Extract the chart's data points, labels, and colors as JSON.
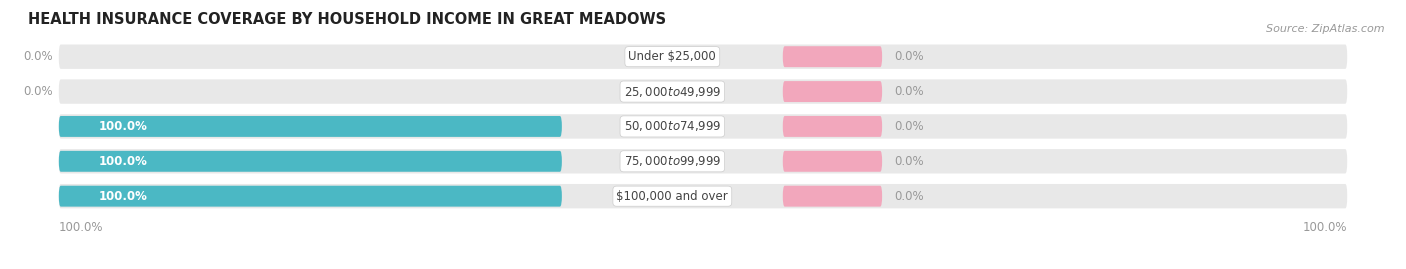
{
  "title": "HEALTH INSURANCE COVERAGE BY HOUSEHOLD INCOME IN GREAT MEADOWS",
  "source": "Source: ZipAtlas.com",
  "categories": [
    "Under $25,000",
    "$25,000 to $49,999",
    "$50,000 to $74,999",
    "$75,000 to $99,999",
    "$100,000 and over"
  ],
  "with_coverage": [
    0.0,
    0.0,
    100.0,
    100.0,
    100.0
  ],
  "without_coverage": [
    0.0,
    0.0,
    0.0,
    0.0,
    0.0
  ],
  "color_with": "#4bb8c4",
  "color_without": "#f2a7bc",
  "color_bar_bg": "#e8e8e8",
  "title_fontsize": 10.5,
  "label_fontsize": 8.5,
  "legend_fontsize": 9,
  "source_fontsize": 8,
  "axis_label_color": "#999999",
  "text_on_bar_color": "#ffffff",
  "text_outside_color": "#999999",
  "label_inside_color": "#444444",
  "background_color": "#ffffff"
}
